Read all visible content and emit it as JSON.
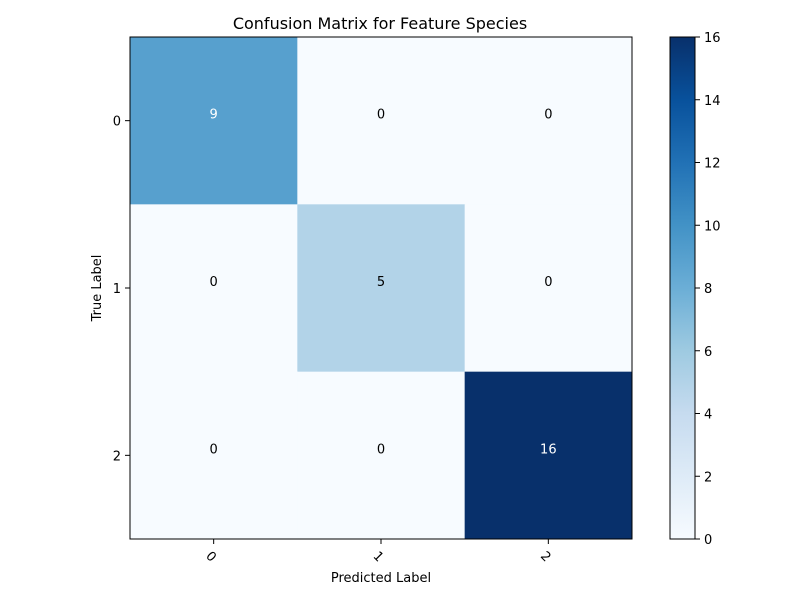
{
  "chart_data": {
    "type": "heatmap",
    "title": "Confusion Matrix for Feature Species",
    "xlabel": "Predicted Label",
    "ylabel": "True Label",
    "x_categories": [
      "0",
      "1",
      "2"
    ],
    "y_categories": [
      "0",
      "1",
      "2"
    ],
    "values": [
      [
        9,
        0,
        0
      ],
      [
        0,
        5,
        0
      ],
      [
        0,
        0,
        16
      ]
    ],
    "colormap": "Blues",
    "color_range": [
      0,
      16
    ],
    "colorbar_ticks": [
      0,
      2,
      4,
      6,
      8,
      10,
      12,
      14,
      16
    ],
    "grid": false,
    "x_tick_rotation_deg": 45
  }
}
